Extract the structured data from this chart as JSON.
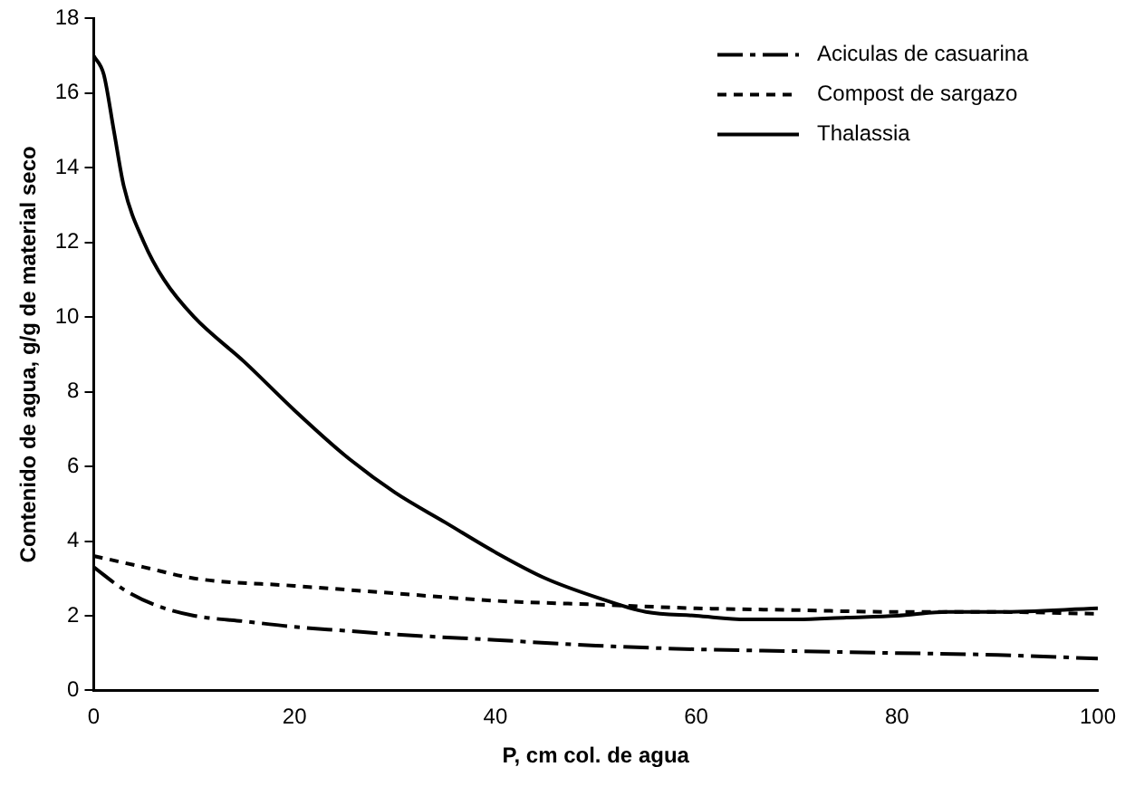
{
  "chart_data": {
    "type": "line",
    "xlabel": "P, cm col. de agua",
    "ylabel": "Contenido de agua, g/g de material seco",
    "xlim": [
      0,
      100
    ],
    "xticks": [
      0,
      20,
      40,
      60,
      80,
      100
    ],
    "ylim": [
      0,
      18
    ],
    "yticks": [
      0,
      2,
      4,
      6,
      8,
      10,
      12,
      14,
      16,
      18
    ],
    "grid": false,
    "legend": "top right",
    "marker": "none",
    "series": [
      {
        "name": "Aciculas de casuarina",
        "color": "#000000",
        "line_style": "dashed",
        "x": [
          0,
          3,
          6,
          10,
          15,
          20,
          25,
          30,
          40,
          50,
          60,
          70,
          80,
          90,
          100
        ],
        "values": [
          3.3,
          2.7,
          2.3,
          2.0,
          1.85,
          1.7,
          1.6,
          1.5,
          1.35,
          1.2,
          1.1,
          1.05,
          1.0,
          0.95,
          0.85
        ]
      },
      {
        "name": "Compost de sargazo",
        "color": "#000000",
        "line_style": "dotted",
        "x": [
          0,
          5,
          10,
          20,
          30,
          40,
          50,
          60,
          70,
          80,
          90,
          100
        ],
        "values": [
          3.6,
          3.3,
          3.0,
          2.8,
          2.6,
          2.4,
          2.3,
          2.2,
          2.15,
          2.1,
          2.1,
          2.05
        ]
      },
      {
        "name": "Thalassia",
        "color": "#000000",
        "line_style": "solid",
        "x": [
          0,
          1,
          2,
          3,
          5,
          7,
          10,
          15,
          20,
          25,
          30,
          35,
          40,
          45,
          50,
          55,
          60,
          65,
          70,
          75,
          80,
          85,
          90,
          100
        ],
        "values": [
          17,
          16.5,
          15,
          13.5,
          12,
          11,
          10,
          8.8,
          7.5,
          6.3,
          5.3,
          4.5,
          3.7,
          3.0,
          2.5,
          2.1,
          2.0,
          1.9,
          1.9,
          1.95,
          2.0,
          2.1,
          2.1,
          2.2
        ]
      }
    ]
  }
}
